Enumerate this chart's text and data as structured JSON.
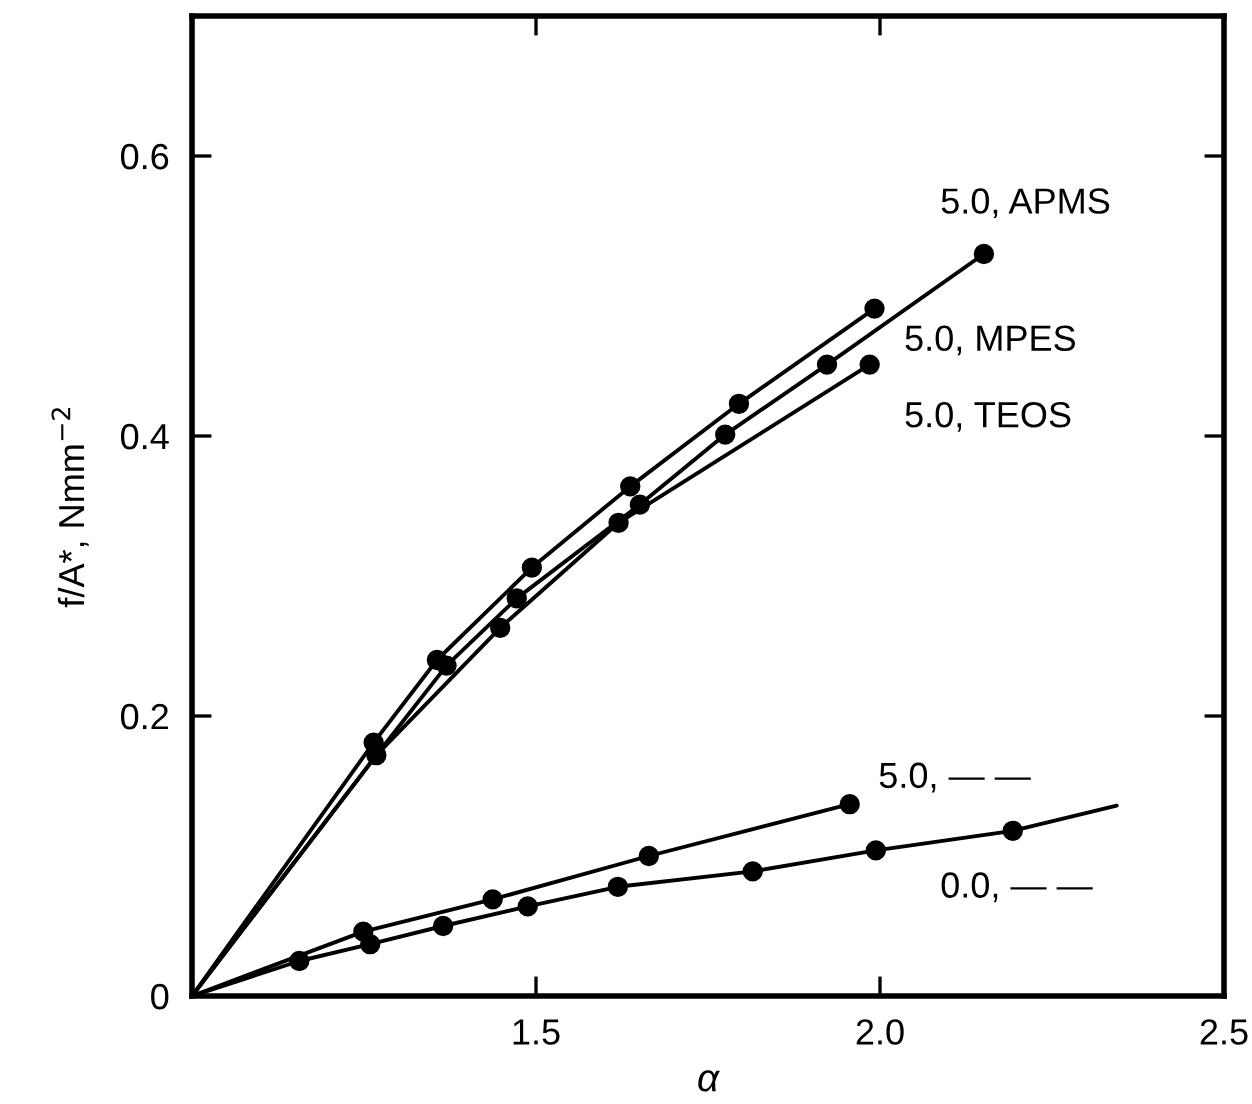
{
  "chart_data": {
    "type": "line",
    "xlabel": "α",
    "ylabel": "f/A*, Nmm$^{−2}$",
    "xlim": [
      1.0,
      2.5
    ],
    "ylim": [
      0,
      0.7
    ],
    "xticks": [
      1.5,
      {
        "value": 2.0,
        "label": "2.0"
      },
      2.5
    ],
    "yticks": [
      0,
      0.2,
      0.4,
      0.6
    ],
    "grid": false,
    "legend": false,
    "marker": "none",
    "line_style": "solid",
    "series": [
      {
        "name": "5.0, APMS",
        "color": "#000000",
        "x": [
          1.0,
          1.268,
          1.37,
          1.472,
          1.651,
          1.775,
          1.923,
          2.151
        ],
        "values": [
          0,
          0.172,
          0.236,
          0.284,
          0.351,
          0.401,
          0.451,
          0.53
        ]
      },
      {
        "name": "5.0, MPES",
        "color": "#000000",
        "x": [
          1.0,
          1.264,
          1.356,
          1.494,
          1.637,
          1.795,
          1.992
        ],
        "values": [
          0,
          0.181,
          0.24,
          0.306,
          0.364,
          0.423,
          0.491
        ]
      },
      {
        "name": "5.0, TEOS",
        "color": "#000000",
        "x": [
          1.0,
          1.268,
          1.448,
          1.62,
          1.985
        ],
        "values": [
          0,
          0.172,
          0.263,
          0.338,
          0.451
        ]
      },
      {
        "name": "5.0, — —",
        "color": "#000000",
        "x": [
          1.0,
          1.249,
          1.437,
          1.664,
          1.956
        ],
        "values": [
          0,
          0.046,
          0.069,
          0.1,
          0.137
        ]
      },
      {
        "name": "0.0, — —",
        "color": "#000000",
        "x": [
          1.0,
          1.156,
          1.259,
          1.365,
          1.488,
          1.619,
          1.815,
          1.994,
          2.193,
          2.344
        ],
        "values": [
          0,
          0.025,
          0.037,
          0.05,
          0.064,
          0.078,
          0.089,
          0.104,
          0.118,
          0.136
        ]
      },
      {
        "type": "scatter",
        "marker": "circle",
        "color": "#000000",
        "x": [
          1.264,
          1.268,
          1.356,
          1.37,
          1.448,
          1.472,
          1.494,
          1.62,
          1.651,
          1.637,
          1.775,
          1.795,
          1.923,
          1.985,
          1.992,
          2.151,
          1.156,
          1.249,
          1.259,
          1.365,
          1.437,
          1.488,
          1.619,
          1.664,
          1.815,
          1.956,
          1.994,
          2.193
        ],
        "values": [
          0.181,
          0.172,
          0.24,
          0.236,
          0.263,
          0.284,
          0.306,
          0.338,
          0.351,
          0.364,
          0.401,
          0.423,
          0.451,
          0.451,
          0.491,
          0.53,
          0.025,
          0.046,
          0.037,
          0.05,
          0.069,
          0.064,
          0.078,
          0.1,
          0.089,
          0.137,
          0.104,
          0.118
        ]
      }
    ]
  }
}
